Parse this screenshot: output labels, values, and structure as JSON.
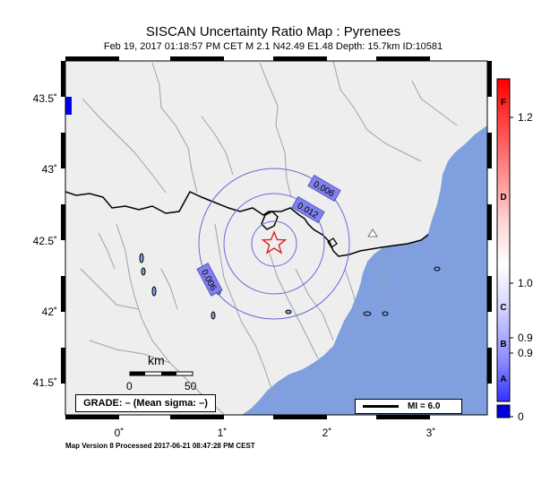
{
  "title": "SISCAN Uncertainty Ratio Map : Pyrenees",
  "subtitle": "Feb 19, 2017 01:18:57 PM CET   M 2.1   N42.49 E1.48   Depth: 15.7km   ID:10581",
  "footer": "Map Version 8 Processed 2017-06-21 08:47:28 PM CEST",
  "axes": {
    "y_ticks": [
      "43.5˚",
      "43˚",
      "42.5˚",
      "42˚",
      "41.5˚"
    ],
    "x_ticks": [
      "0˚",
      "1˚",
      "2˚",
      "3˚"
    ]
  },
  "contours": {
    "label_outer": "0.006",
    "label_mid": "0.012",
    "label_left": "0.006"
  },
  "epicenter": {
    "lat": 42.49,
    "lon": 1.48
  },
  "scale_bar": {
    "title": "km",
    "start": "0",
    "end": "50"
  },
  "grade_text": "GRADE: – (Mean sigma: –)",
  "mi_legend": "MI = 6.0",
  "colorbar": {
    "letters": [
      "F",
      "D",
      "C",
      "B",
      "A"
    ],
    "values": [
      "1.2",
      "1.0",
      "0.9",
      "0.9",
      "0"
    ]
  },
  "colors": {
    "land": "#eeeeee",
    "sea": "#7f9fde",
    "border": "#000000",
    "rivers": "#a0a0b0",
    "contour": "#6a6ad8",
    "epicenter": "#e02020"
  }
}
